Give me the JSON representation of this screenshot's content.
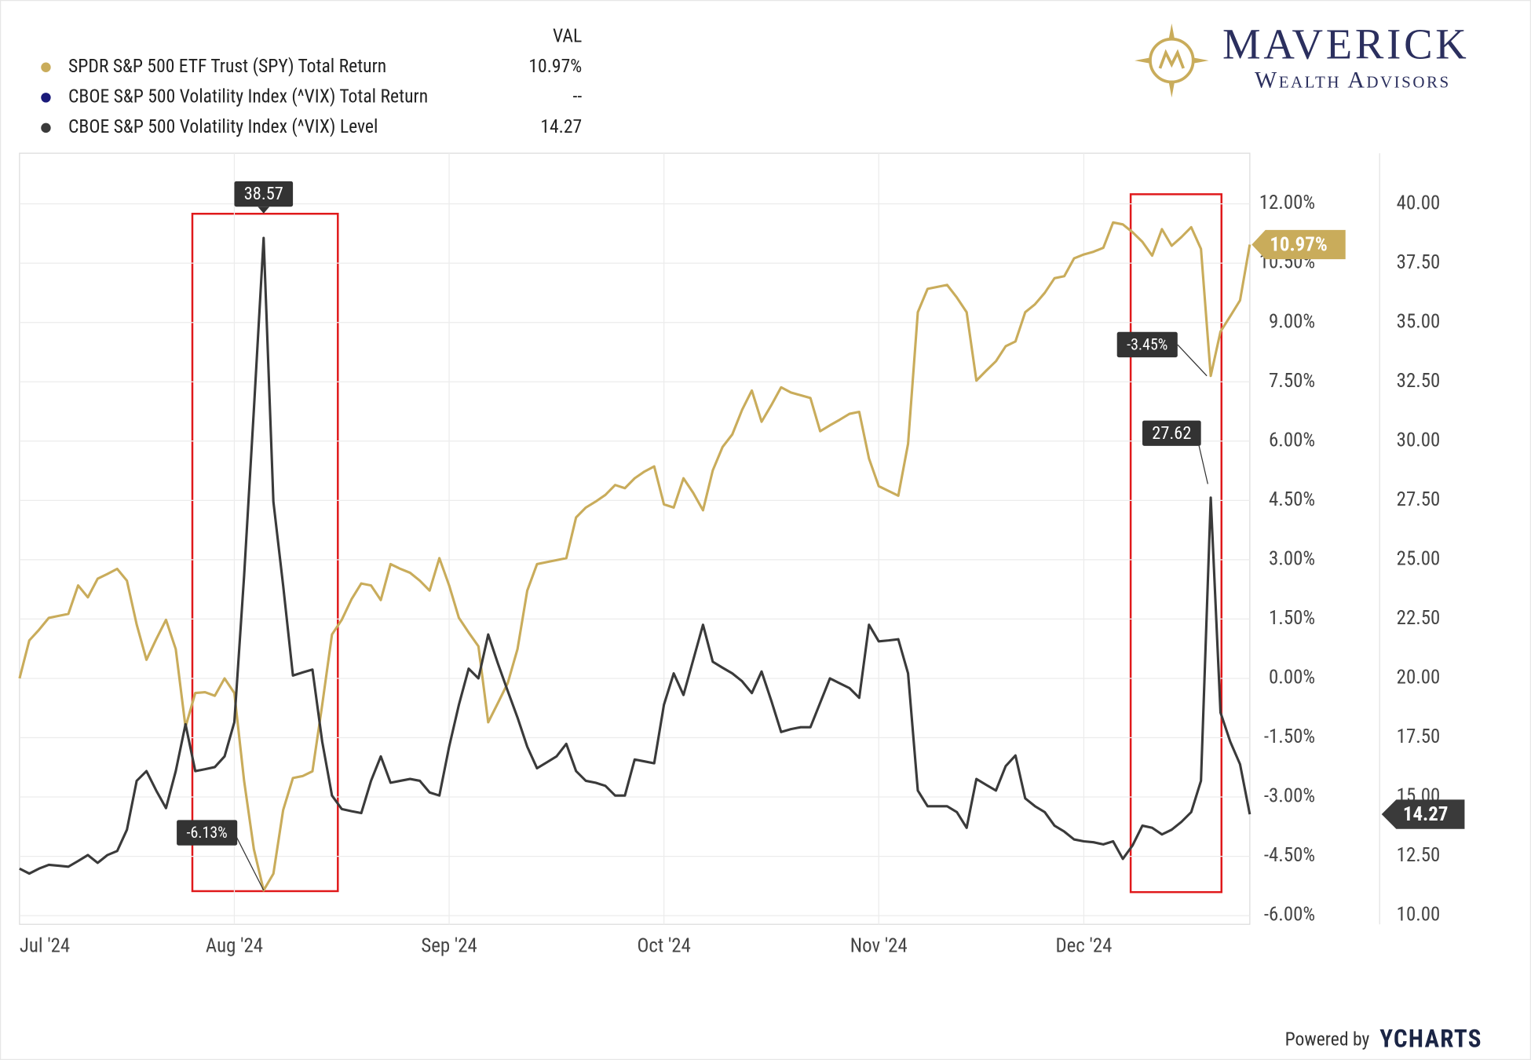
{
  "chart_data": {
    "type": "line",
    "legend_header": "VAL",
    "categories": [
      "Jul '24",
      null,
      null,
      null,
      null,
      null,
      null,
      null,
      null,
      null,
      null,
      null,
      null,
      null,
      null,
      null,
      null,
      null,
      null,
      null,
      null,
      null,
      "Aug '24",
      null,
      null,
      null,
      null,
      null,
      null,
      null,
      null,
      null,
      null,
      null,
      null,
      null,
      null,
      null,
      null,
      null,
      null,
      null,
      null,
      null,
      "Sep '24",
      null,
      null,
      null,
      null,
      null,
      null,
      null,
      null,
      null,
      null,
      null,
      null,
      null,
      null,
      null,
      null,
      null,
      null,
      null,
      null,
      null,
      "Oct '24",
      null,
      null,
      null,
      null,
      null,
      null,
      null,
      null,
      null,
      null,
      null,
      null,
      null,
      null,
      null,
      null,
      null,
      null,
      null,
      null,
      null,
      "Nov '24",
      null,
      null,
      null,
      null,
      null,
      null,
      null,
      null,
      null,
      null,
      null,
      null,
      null,
      null,
      null,
      null,
      null,
      null,
      null,
      null,
      "Dec '24",
      null,
      null,
      null,
      null,
      null,
      null,
      null,
      null,
      null,
      null,
      null,
      null,
      null,
      null,
      null,
      null,
      null
    ],
    "series": [
      {
        "name": "SPDR S&P 500 ETF Trust (SPY) Total Return",
        "color": "#c9ac5b",
        "axis": "y",
        "last_label": "10.97%",
        "values": [
          0,
          0.96,
          1.23,
          1.53,
          1.58,
          1.63,
          2.35,
          2.05,
          2.52,
          2.64,
          2.77,
          2.47,
          1.36,
          0.47,
          0.99,
          1.48,
          0.74,
          -1.23,
          -0.37,
          -0.35,
          -0.44,
          0,
          -0.37,
          -2.59,
          -4.32,
          -5.36,
          -4.94,
          -3.33,
          -2.52,
          -2.47,
          -2.35,
          -0.67,
          1.11,
          1.48,
          2.0,
          2.4,
          2.35,
          1.98,
          2.89,
          2.77,
          2.67,
          2.47,
          2.22,
          3.04,
          2.35,
          1.53,
          1.16,
          0.81,
          -1.11,
          -0.62,
          -0.12,
          0.74,
          2.22,
          2.89,
          2.94,
          2.99,
          3.04,
          4.07,
          4.32,
          4.47,
          4.64,
          4.89,
          4.81,
          5.06,
          5.23,
          5.36,
          4.4,
          4.32,
          5.06,
          4.69,
          4.25,
          5.26,
          5.85,
          6.17,
          6.79,
          7.28,
          6.49,
          6.91,
          7.36,
          7.23,
          7.16,
          7.09,
          6.25,
          6.4,
          6.54,
          6.69,
          6.74,
          5.56,
          4.86,
          4.74,
          4.62,
          5.93,
          9.26,
          9.85,
          9.9,
          9.95,
          9.63,
          9.26,
          7.53,
          7.78,
          8.02,
          8.4,
          8.52,
          9.26,
          9.46,
          9.75,
          10.12,
          10.17,
          10.62,
          10.72,
          10.79,
          10.89,
          11.53,
          11.48,
          11.28,
          11.04,
          10.69,
          11.36,
          10.94,
          11.16,
          11.41,
          10.86,
          7.65,
          8.77,
          9.16,
          9.56,
          10.97
        ]
      },
      {
        "name": "CBOE S&P 500 Volatility Index (^VIX) Total Return",
        "color": "#1a1a7a",
        "axis": "y",
        "last_label": "--",
        "values": [
          null,
          null,
          null,
          null,
          null,
          null,
          null,
          null,
          null,
          null,
          null,
          null,
          null,
          null,
          null,
          null,
          null,
          null,
          null,
          null,
          null,
          null,
          null,
          null,
          null,
          null,
          null,
          null,
          null,
          null,
          null,
          null,
          null,
          null,
          null,
          null,
          null,
          null,
          null,
          null,
          null,
          null,
          null,
          null,
          null,
          null,
          null,
          null,
          null,
          null,
          null,
          null,
          null,
          null,
          null,
          null,
          null,
          null,
          null,
          null,
          null,
          null,
          null,
          null,
          null,
          null,
          null,
          null,
          null,
          null,
          null,
          null,
          null,
          null,
          null,
          null,
          null,
          null,
          null,
          null,
          null,
          null,
          null,
          null,
          null,
          null,
          null,
          null,
          null,
          null,
          null,
          null,
          null,
          null,
          null,
          null,
          null,
          null,
          null,
          null,
          null,
          null,
          null,
          null,
          null,
          null,
          null,
          null,
          null,
          null,
          null,
          null,
          null,
          null,
          null,
          null,
          null,
          null,
          null,
          null,
          null,
          null,
          null,
          null,
          null,
          null,
          null
        ]
      },
      {
        "name": "CBOE S&P 500 Volatility Index (^VIX) Level",
        "color": "#3a3a3a",
        "axis": "y2",
        "last_label": "14.27",
        "values": [
          11.98,
          11.77,
          11.98,
          12.14,
          12.1,
          12.06,
          12.3,
          12.55,
          12.22,
          12.55,
          12.72,
          13.62,
          15.68,
          16.09,
          15.27,
          14.53,
          16.09,
          18.07,
          16.09,
          16.17,
          16.26,
          16.71,
          18.15,
          24.32,
          31.32,
          38.57,
          27.45,
          23.91,
          20.12,
          20.25,
          20.37,
          17.33,
          15.06,
          14.49,
          14.4,
          14.32,
          15.68,
          16.71,
          15.6,
          15.68,
          15.76,
          15.68,
          15.19,
          15.06,
          17.12,
          18.89,
          20.41,
          20.0,
          21.85,
          20.62,
          19.47,
          18.35,
          17.12,
          16.21,
          16.46,
          16.71,
          17.24,
          16.09,
          15.68,
          15.6,
          15.47,
          15.06,
          15.06,
          16.58,
          16.5,
          16.42,
          18.89,
          20.21,
          19.3,
          20.78,
          22.26,
          20.7,
          20.45,
          20.21,
          19.88,
          19.38,
          20.29,
          19.05,
          17.74,
          17.86,
          17.94,
          17.94,
          18.97,
          20.0,
          19.79,
          19.59,
          19.18,
          22.26,
          21.56,
          21.6,
          21.65,
          20.21,
          15.27,
          14.61,
          14.61,
          14.61,
          14.36,
          13.7,
          15.76,
          15.51,
          15.27,
          16.3,
          16.75,
          14.94,
          14.61,
          14.36,
          13.79,
          13.54,
          13.21,
          13.13,
          13.09,
          13.0,
          13.13,
          12.39,
          12.96,
          13.79,
          13.7,
          13.42,
          13.62,
          13.95,
          14.36,
          15.68,
          27.62,
          18.56,
          17.33,
          16.38,
          14.27
        ]
      }
    ],
    "annotations": [
      "-6.13%",
      "-3.45%"
    ],
    "ylim": [
      -6.22,
      13.28
    ],
    "yticks": [
      {
        "value": 12,
        "label": "12.00%"
      },
      {
        "value": 10.5,
        "label": "10.50%"
      },
      {
        "value": 9,
        "label": "9.00%"
      },
      {
        "value": 7.5,
        "label": "7.50%"
      },
      {
        "value": 6,
        "label": "6.00%"
      },
      {
        "value": 4.5,
        "label": "4.50%"
      },
      {
        "value": 3,
        "label": "3.00%"
      },
      {
        "value": 1.5,
        "label": "1.50%"
      },
      {
        "value": 0,
        "label": "0.00%"
      },
      {
        "value": -1.5,
        "label": "-1.50%"
      },
      {
        "value": -3,
        "label": "-3.00%"
      },
      {
        "value": -4.5,
        "label": "-4.50%"
      },
      {
        "value": -6,
        "label": "-6.00%"
      }
    ],
    "y2lim": [
      9.63,
      42.14
    ],
    "y2ticks": [
      {
        "value": 40,
        "label": "40.00"
      },
      {
        "value": 37.5,
        "label": "37.50"
      },
      {
        "value": 35,
        "label": "35.00"
      },
      {
        "value": 32.5,
        "label": "32.50"
      },
      {
        "value": 30,
        "label": "30.00"
      },
      {
        "value": 27.5,
        "label": "27.50"
      },
      {
        "value": 25,
        "label": "25.00"
      },
      {
        "value": 22.5,
        "label": "22.50"
      },
      {
        "value": 20,
        "label": "20.00"
      },
      {
        "value": 17.5,
        "label": "17.50"
      },
      {
        "value": 15,
        "label": "15.00"
      },
      {
        "value": 12.5,
        "label": "12.50"
      },
      {
        "value": 10,
        "label": "10.00"
      }
    ],
    "grid": true
  },
  "logo": {
    "name": "MAVERICK",
    "tagline": "Wealth Advisors"
  },
  "footer": {
    "powered_by": "Powered by",
    "brand": "YCHARTS"
  }
}
